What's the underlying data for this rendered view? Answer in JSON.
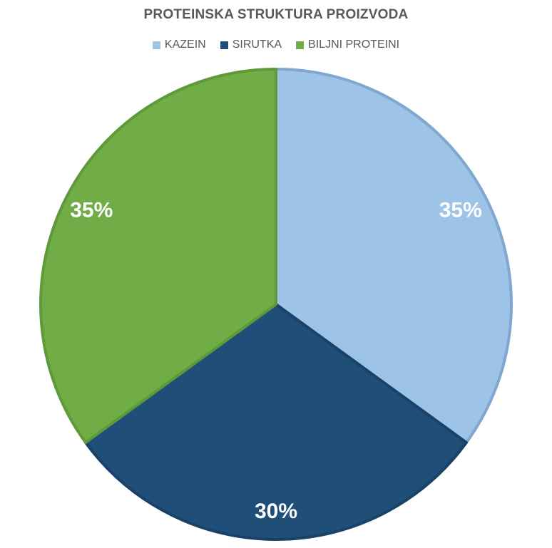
{
  "chart_data": {
    "type": "pie",
    "title": "PROTEINSKA STRUKTURA PROIZVODA",
    "legend_position": "top",
    "categories": [
      "KAZEIN",
      "SIRUTKA",
      "BILJNI PROTEINI"
    ],
    "values": [
      35,
      30,
      35
    ],
    "data_labels": [
      "35%",
      "30%",
      "35%"
    ],
    "colors": [
      "#9dc3e6",
      "#1f4e79",
      "#70ad47"
    ],
    "border_colors": [
      "#7fa7cf",
      "#1a4269",
      "#5e9a3a"
    ]
  }
}
